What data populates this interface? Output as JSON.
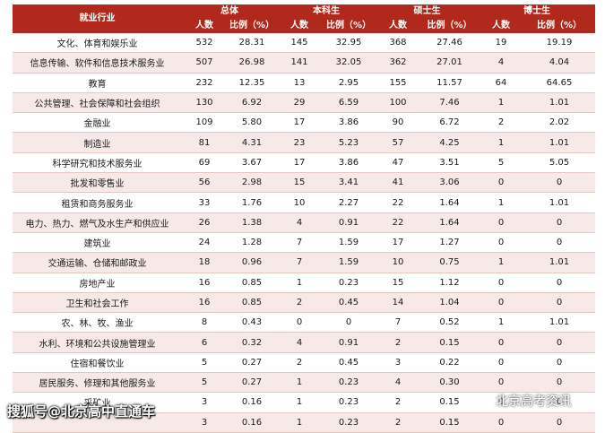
{
  "table": {
    "header": {
      "industry": "就业行业",
      "groups": [
        "总体",
        "本科生",
        "硕士生",
        "博士生"
      ],
      "count_label": "人数",
      "ratio_label": "比例（%）"
    },
    "rows": [
      {
        "industry": "文化、体育和娱乐业",
        "v": [
          "532",
          "28.31",
          "145",
          "32.95",
          "368",
          "27.46",
          "19",
          "19.19"
        ]
      },
      {
        "industry": "信息传输、软件和信息技术服务业",
        "v": [
          "507",
          "26.98",
          "141",
          "32.05",
          "362",
          "27.01",
          "4",
          "4.04"
        ]
      },
      {
        "industry": "教育",
        "v": [
          "232",
          "12.35",
          "13",
          "2.95",
          "155",
          "11.57",
          "64",
          "64.65"
        ]
      },
      {
        "industry": "公共管理、社会保障和社会组织",
        "v": [
          "130",
          "6.92",
          "29",
          "6.59",
          "100",
          "7.46",
          "1",
          "1.01"
        ]
      },
      {
        "industry": "金融业",
        "v": [
          "109",
          "5.80",
          "17",
          "3.86",
          "90",
          "6.72",
          "2",
          "2.02"
        ]
      },
      {
        "industry": "制造业",
        "v": [
          "81",
          "4.31",
          "23",
          "5.23",
          "57",
          "4.25",
          "1",
          "1.01"
        ]
      },
      {
        "industry": "科学研究和技术服务业",
        "v": [
          "69",
          "3.67",
          "17",
          "3.86",
          "47",
          "3.51",
          "5",
          "5.05"
        ]
      },
      {
        "industry": "批发和零售业",
        "v": [
          "56",
          "2.98",
          "15",
          "3.41",
          "41",
          "3.06",
          "0",
          "0"
        ]
      },
      {
        "industry": "租赁和商务服务业",
        "v": [
          "33",
          "1.76",
          "10",
          "2.27",
          "22",
          "1.64",
          "1",
          "1.01"
        ]
      },
      {
        "industry": "电力、热力、燃气及水生产和供应业",
        "v": [
          "26",
          "1.38",
          "4",
          "0.91",
          "22",
          "1.64",
          "0",
          "0"
        ]
      },
      {
        "industry": "建筑业",
        "v": [
          "24",
          "1.28",
          "7",
          "1.59",
          "17",
          "1.27",
          "0",
          "0"
        ]
      },
      {
        "industry": "交通运输、仓储和邮政业",
        "v": [
          "18",
          "0.96",
          "7",
          "1.59",
          "10",
          "0.75",
          "1",
          "1.01"
        ]
      },
      {
        "industry": "房地产业",
        "v": [
          "16",
          "0.85",
          "1",
          "0.23",
          "15",
          "1.12",
          "0",
          "0"
        ]
      },
      {
        "industry": "卫生和社会工作",
        "v": [
          "16",
          "0.85",
          "2",
          "0.45",
          "14",
          "1.04",
          "0",
          "0"
        ]
      },
      {
        "industry": "农、林、牧、渔业",
        "v": [
          "8",
          "0.43",
          "0",
          "0",
          "7",
          "0.52",
          "1",
          "1.01"
        ]
      },
      {
        "industry": "水利、环境和公共设施管理业",
        "v": [
          "6",
          "0.32",
          "4",
          "0.91",
          "2",
          "0.15",
          "0",
          "0"
        ]
      },
      {
        "industry": "住宿和餐饮业",
        "v": [
          "5",
          "0.27",
          "2",
          "0.45",
          "3",
          "0.22",
          "0",
          "0"
        ]
      },
      {
        "industry": "居民服务、修理和其他服务业",
        "v": [
          "5",
          "0.27",
          "1",
          "0.23",
          "4",
          "0.30",
          "0",
          "0"
        ]
      },
      {
        "industry": "采矿业",
        "v": [
          "3",
          "0.16",
          "1",
          "0.23",
          "2",
          "0.15",
          "0",
          "0"
        ]
      },
      {
        "industry": "",
        "v": [
          "3",
          "0.16",
          "1",
          "0.23",
          "2",
          "0.15",
          "0",
          "0"
        ]
      }
    ]
  },
  "watermark": {
    "left_text": "搜狐号@北京高中直通车",
    "right_text": "北京高考资讯",
    "right_icon": "wechat-icon"
  }
}
